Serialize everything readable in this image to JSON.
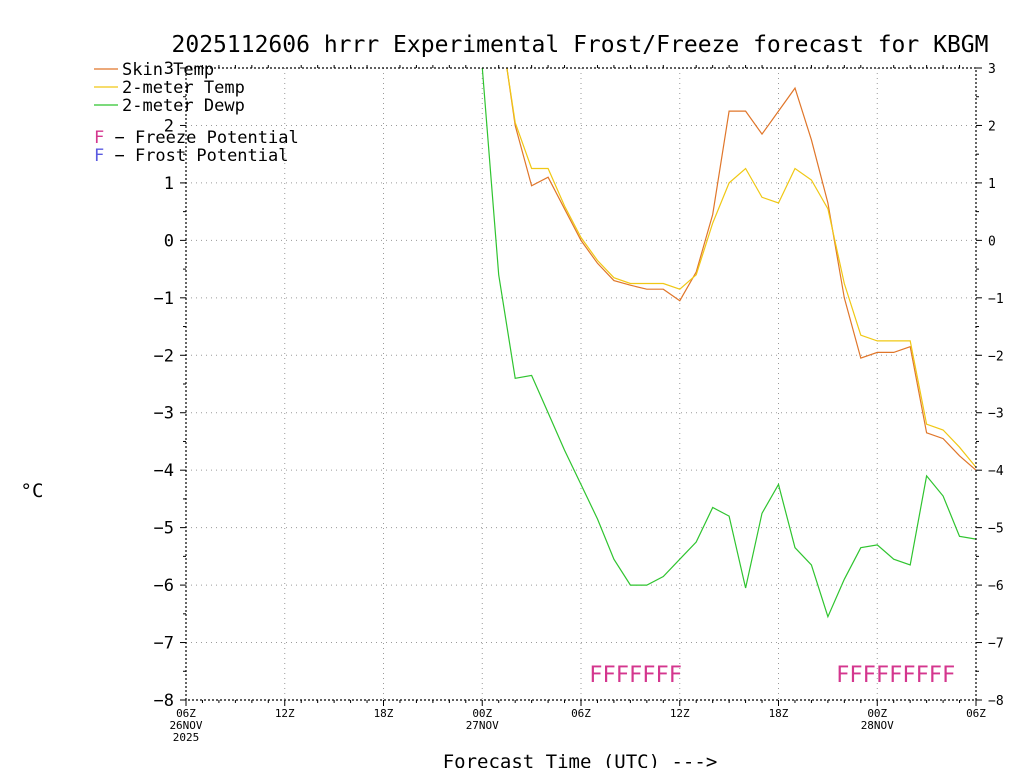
{
  "chart_data": {
    "type": "line",
    "title": "2025112606 hrrr Experimental Frost/Freeze forecast for KBGM",
    "xlabel": "Forecast Time (UTC) --->",
    "ylabel": "°C",
    "ylim": [
      -8,
      3
    ],
    "xlim": [
      0,
      48
    ],
    "y_ticks": [
      3,
      2,
      1,
      0,
      -1,
      -2,
      -3,
      -4,
      -5,
      -6,
      -7,
      -8
    ],
    "y_tick_labels": [
      "3",
      "2",
      "1",
      "0",
      "−1",
      "−2",
      "−3",
      "−4",
      "−5",
      "−6",
      "−7",
      "−8"
    ],
    "x_ticks": [
      {
        "hour": 0,
        "lines": [
          "06Z",
          "26NOV",
          "2025"
        ]
      },
      {
        "hour": 6,
        "lines": [
          "12Z"
        ]
      },
      {
        "hour": 12,
        "lines": [
          "18Z"
        ]
      },
      {
        "hour": 18,
        "lines": [
          "00Z",
          "27NOV"
        ]
      },
      {
        "hour": 24,
        "lines": [
          "06Z"
        ]
      },
      {
        "hour": 30,
        "lines": [
          "12Z"
        ]
      },
      {
        "hour": 36,
        "lines": [
          "18Z"
        ]
      },
      {
        "hour": 42,
        "lines": [
          "00Z",
          "28NOV"
        ]
      },
      {
        "hour": 48,
        "lines": [
          "06Z"
        ]
      }
    ],
    "grid": true,
    "series": [
      {
        "name": "Skin Temp",
        "color": "#e0762a",
        "x": [
          19.5,
          20,
          21,
          22,
          23,
          24,
          25,
          26,
          27,
          28,
          29,
          30,
          31,
          32,
          33,
          34,
          35,
          36,
          37,
          38,
          39,
          40,
          41,
          42,
          43,
          44,
          45,
          46,
          47,
          48
        ],
        "y": [
          3.0,
          2.0,
          0.95,
          1.1,
          0.55,
          0.0,
          -0.4,
          -0.7,
          -0.78,
          -0.85,
          -0.85,
          -1.05,
          -0.55,
          0.45,
          2.25,
          2.25,
          1.85,
          2.25,
          2.65,
          1.75,
          0.65,
          -1.0,
          -2.05,
          -1.95,
          -1.95,
          -1.85,
          -3.35,
          -3.45,
          -3.75,
          -4.0
        ]
      },
      {
        "name": "2-meter Temp",
        "color": "#f0c814",
        "x": [
          19.5,
          20,
          21,
          22,
          23,
          24,
          25,
          26,
          27,
          28,
          29,
          30,
          31,
          32,
          33,
          34,
          35,
          36,
          37,
          38,
          39,
          40,
          41,
          42,
          43,
          44,
          45,
          46,
          47,
          48
        ],
        "y": [
          3.0,
          2.05,
          1.25,
          1.25,
          0.6,
          0.05,
          -0.35,
          -0.65,
          -0.75,
          -0.75,
          -0.75,
          -0.85,
          -0.6,
          0.3,
          1.0,
          1.25,
          0.75,
          0.65,
          1.25,
          1.05,
          0.55,
          -0.75,
          -1.65,
          -1.75,
          -1.75,
          -1.75,
          -3.2,
          -3.3,
          -3.6,
          -3.95
        ]
      },
      {
        "name": "2-meter Dewp",
        "color": "#2fc42f",
        "x": [
          18,
          19,
          20,
          21,
          22,
          23,
          24,
          25,
          26,
          27,
          28,
          29,
          30,
          31,
          32,
          33,
          34,
          35,
          36,
          37,
          38,
          39,
          40,
          41,
          42,
          43,
          44,
          45,
          46,
          47,
          48
        ],
        "y": [
          3.0,
          -0.6,
          -2.4,
          -2.35,
          -3.0,
          -3.65,
          -4.25,
          -4.85,
          -5.55,
          -6.0,
          -6.0,
          -5.85,
          -5.55,
          -5.25,
          -4.65,
          -4.8,
          -6.05,
          -4.75,
          -4.25,
          -5.35,
          -5.65,
          -6.55,
          -5.9,
          -5.35,
          -5.3,
          -5.55,
          -5.65,
          -4.1,
          -4.45,
          -5.15,
          -5.2
        ]
      }
    ],
    "legend": {
      "position": "top-left",
      "entries": [
        "Skin Temp",
        "2-meter Temp",
        "2-meter Dewp"
      ],
      "flag_entries": [
        {
          "letter": "F",
          "text": " − Freeze Potential",
          "color": "#d4368e"
        },
        {
          "letter": "F",
          "text": " − Frost Potential",
          "color": "#5a5ae0"
        }
      ]
    },
    "freeze_flags": [
      {
        "start_hour": 24.5,
        "text": "FFFFFFF"
      },
      {
        "start_hour": 39.5,
        "text": "FFFFFFFFF"
      }
    ]
  }
}
